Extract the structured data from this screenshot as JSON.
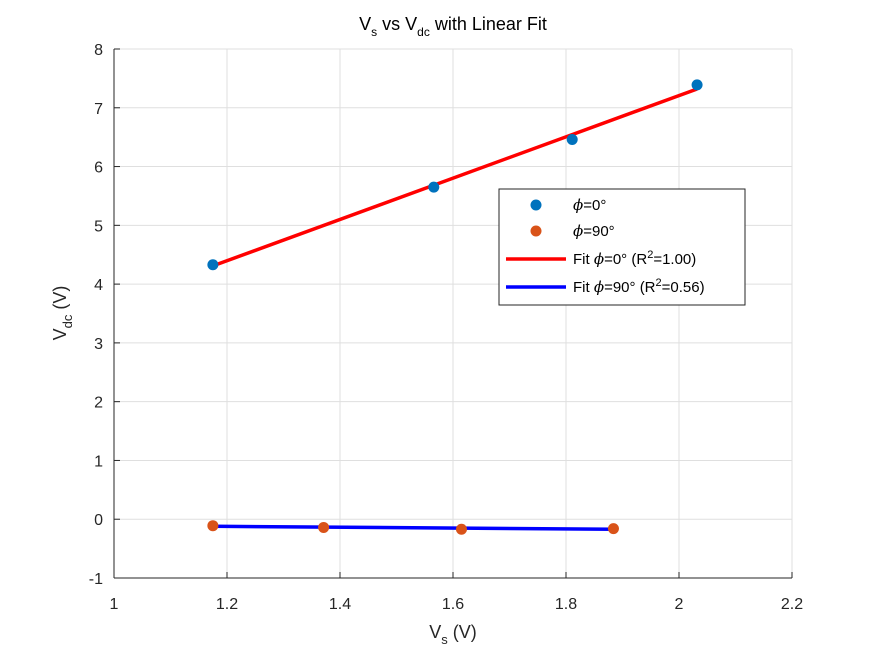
{
  "chart_data": {
    "type": "scatter",
    "title": "V_s vs V_dc with Linear Fit",
    "xlabel": "V_s (V)",
    "ylabel": "V_dc (V)",
    "xlim": [
      1,
      2.2
    ],
    "ylim": [
      -1,
      8
    ],
    "xticks": [
      1,
      1.2,
      1.4,
      1.6,
      1.8,
      2,
      2.2
    ],
    "xtick_labels": [
      "1",
      "1.2",
      "1.4",
      "1.6",
      "1.8",
      "2",
      "2.2"
    ],
    "yticks": [
      -1,
      0,
      1,
      2,
      3,
      4,
      5,
      6,
      7,
      8
    ],
    "ytick_labels": [
      "-1",
      "0",
      "1",
      "2",
      "3",
      "4",
      "5",
      "6",
      "7",
      "8"
    ],
    "grid": true,
    "legend_position": "upper-right inside plot",
    "series": [
      {
        "name": "ϕ=0°",
        "kind": "scatter",
        "color": "#0072BD",
        "x": [
          1.175,
          1.566,
          1.811,
          2.032
        ],
        "y": [
          4.33,
          5.65,
          6.46,
          7.39
        ]
      },
      {
        "name": "ϕ=90°",
        "kind": "scatter",
        "color": "#D95319",
        "x": [
          1.175,
          1.371,
          1.615,
          1.884
        ],
        "y": [
          -0.11,
          -0.14,
          -0.17,
          -0.16
        ]
      },
      {
        "name": "Fit ϕ=0° (R²=1.00)",
        "kind": "line",
        "color": "#FF0000",
        "x": [
          1.175,
          2.032
        ],
        "y": [
          4.31,
          7.32
        ]
      },
      {
        "name": "Fit ϕ=90° (R²=0.56)",
        "kind": "line",
        "color": "#0000FF",
        "x": [
          1.175,
          1.884
        ],
        "y": [
          -0.12,
          -0.17
        ]
      }
    ]
  }
}
